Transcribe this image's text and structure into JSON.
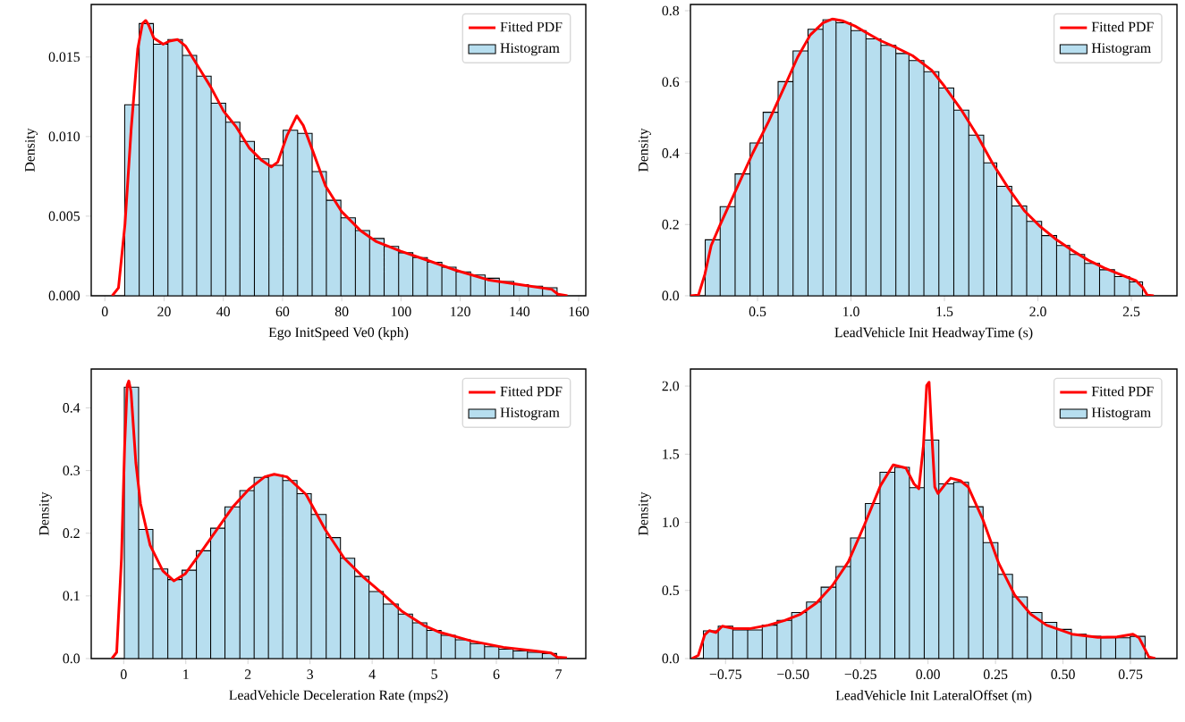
{
  "chart_data": [
    {
      "type": "histogram",
      "xlabel": "Ego InitSpeed Ve0 (kph)",
      "ylabel": "Density",
      "xlim": [
        -4.6,
        162.4
      ],
      "ylim": [
        0,
        0.0183
      ],
      "xticks": [
        0,
        20,
        40,
        60,
        80,
        100,
        120,
        140,
        160
      ],
      "yticks": [
        {
          "value": 0,
          "label": "0.000"
        },
        {
          "value": 0.005,
          "label": "0.005"
        },
        {
          "value": 0.01,
          "label": "0.010"
        },
        {
          "value": 0.015,
          "label": "0.015"
        }
      ],
      "legend": "top right",
      "series": [
        {
          "name": "Fitted PDF",
          "type": "line",
          "color": "#ff0000",
          "x": [
            2.5,
            4.6,
            6.8,
            8.9,
            11.1,
            12.7,
            13.8,
            14.8,
            16.5,
            19.7,
            21.8,
            24.5,
            27.2,
            31.5,
            35.8,
            40.1,
            44.4,
            48.7,
            53.0,
            56.2,
            58.4,
            61.6,
            64.8,
            67.0,
            70.2,
            74.5,
            79.9,
            86.3,
            91.7,
            99.9,
            107.8,
            118.6,
            129.4,
            140.1,
            150.9,
            153.0,
            156.2
          ],
          "values": [
            0,
            0.0005,
            0.0045,
            0.0105,
            0.0155,
            0.0171,
            0.0173,
            0.017,
            0.0162,
            0.0158,
            0.016,
            0.0161,
            0.0157,
            0.0144,
            0.0131,
            0.0116,
            0.0106,
            0.0093,
            0.0085,
            0.0081,
            0.0084,
            0.0101,
            0.0113,
            0.0107,
            0.0091,
            0.0069,
            0.0053,
            0.0041,
            0.0034,
            0.0028,
            0.0023,
            0.0016,
            0.001,
            0.0007,
            0.0004,
            0.0001,
            0
          ]
        },
        {
          "name": "Histogram",
          "type": "histogram",
          "color": "#b7deef",
          "bins": [
            6.7,
            11.6,
            16.4,
            21.3,
            26.2,
            31.0,
            35.9,
            40.8,
            45.6,
            50.5,
            55.4,
            60.2,
            65.1,
            70.0,
            74.8,
            79.7,
            84.6,
            89.4,
            94.3,
            99.2,
            104.0,
            108.9,
            113.8,
            118.6,
            123.5,
            128.4,
            133.2,
            138.1,
            143.0,
            147.8,
            152.7
          ],
          "values": [
            0.012,
            0.0171,
            0.0158,
            0.0161,
            0.0151,
            0.0138,
            0.0121,
            0.0109,
            0.0097,
            0.0086,
            0.0082,
            0.0104,
            0.0102,
            0.0078,
            0.006,
            0.0049,
            0.0041,
            0.0036,
            0.0031,
            0.0027,
            0.0024,
            0.0021,
            0.0018,
            0.0015,
            0.0013,
            0.0011,
            0.0009,
            0.0007,
            0.0006,
            0.0005
          ]
        }
      ]
    },
    {
      "type": "histogram",
      "xlabel": "LeadVehicle Init HeadwayTime (s)",
      "ylabel": "Density",
      "xlim": [
        0.141,
        2.744
      ],
      "ylim": [
        0,
        0.8176
      ],
      "xticks": [
        {
          "value": 0.5,
          "label": "0.5"
        },
        {
          "value": 1.0,
          "label": "1.0"
        },
        {
          "value": 1.5,
          "label": "1.5"
        },
        {
          "value": 2.0,
          "label": "2.0"
        },
        {
          "value": 2.5,
          "label": "2.5"
        }
      ],
      "yticks": [
        {
          "value": 0,
          "label": "0.0"
        },
        {
          "value": 0.2,
          "label": "0.2"
        },
        {
          "value": 0.4,
          "label": "0.4"
        },
        {
          "value": 0.6,
          "label": "0.6"
        },
        {
          "value": 0.8,
          "label": "0.8"
        }
      ],
      "legend": "top right",
      "series": [
        {
          "name": "Fitted PDF",
          "type": "line",
          "color": "#ff0000",
          "x": [
            0.141,
            0.184,
            0.218,
            0.252,
            0.303,
            0.389,
            0.474,
            0.56,
            0.645,
            0.714,
            0.782,
            0.85,
            0.902,
            0.953,
            1.021,
            1.09,
            1.158,
            1.244,
            1.329,
            1.432,
            1.5,
            1.585,
            1.671,
            1.756,
            1.842,
            1.927,
            2.013,
            2.098,
            2.184,
            2.269,
            2.355,
            2.44,
            2.526,
            2.56,
            2.585,
            2.62
          ],
          "values": [
            0,
            0.002,
            0.06,
            0.141,
            0.203,
            0.302,
            0.4,
            0.49,
            0.588,
            0.669,
            0.732,
            0.766,
            0.777,
            0.772,
            0.757,
            0.736,
            0.716,
            0.696,
            0.674,
            0.633,
            0.588,
            0.526,
            0.454,
            0.373,
            0.302,
            0.239,
            0.194,
            0.158,
            0.127,
            0.1,
            0.078,
            0.06,
            0.042,
            0.024,
            0.002,
            0
          ]
        },
        {
          "name": "Histogram",
          "type": "histogram",
          "color": "#b7deef",
          "bins": [
            0.22,
            0.3,
            0.38,
            0.46,
            0.53,
            0.61,
            0.69,
            0.77,
            0.85,
            0.92,
            1.0,
            1.08,
            1.16,
            1.24,
            1.31,
            1.39,
            1.47,
            1.55,
            1.63,
            1.71,
            1.78,
            1.86,
            1.94,
            2.02,
            2.1,
            2.17,
            2.25,
            2.33,
            2.41,
            2.49,
            2.56
          ],
          "values": [
            0.157,
            0.25,
            0.342,
            0.429,
            0.515,
            0.601,
            0.687,
            0.748,
            0.775,
            0.766,
            0.744,
            0.721,
            0.703,
            0.68,
            0.66,
            0.629,
            0.583,
            0.521,
            0.451,
            0.373,
            0.307,
            0.252,
            0.209,
            0.169,
            0.141,
            0.116,
            0.091,
            0.073,
            0.054,
            0.039
          ]
        }
      ]
    },
    {
      "type": "histogram",
      "xlabel": "LeadVehicle Deceleration Rate (mps2)",
      "ylabel": "Density",
      "xlim": [
        -0.523,
        7.44
      ],
      "ylim": [
        0,
        0.462
      ],
      "xticks": [
        0,
        1,
        2,
        3,
        4,
        5,
        6,
        7
      ],
      "yticks": [
        {
          "value": 0,
          "label": "0.0"
        },
        {
          "value": 0.1,
          "label": "0.1"
        },
        {
          "value": 0.2,
          "label": "0.2"
        },
        {
          "value": 0.3,
          "label": "0.3"
        },
        {
          "value": 0.4,
          "label": "0.4"
        }
      ],
      "legend": "top right",
      "series": [
        {
          "name": "Fitted PDF",
          "type": "line",
          "color": "#ff0000",
          "x": [
            -0.19,
            -0.113,
            -0.036,
            0.015,
            0.056,
            0.082,
            0.118,
            0.195,
            0.271,
            0.425,
            0.63,
            0.809,
            0.989,
            1.245,
            1.501,
            1.757,
            2.013,
            2.27,
            2.423,
            2.628,
            2.935,
            3.243,
            3.55,
            3.858,
            4.165,
            4.472,
            4.831,
            5.087,
            5.6,
            6.112,
            6.624,
            6.881,
            6.983,
            7.136
          ],
          "values": [
            0,
            0.01,
            0.16,
            0.339,
            0.436,
            0.443,
            0.426,
            0.313,
            0.247,
            0.181,
            0.14,
            0.124,
            0.135,
            0.17,
            0.206,
            0.242,
            0.27,
            0.29,
            0.294,
            0.29,
            0.262,
            0.206,
            0.16,
            0.13,
            0.104,
            0.076,
            0.053,
            0.042,
            0.028,
            0.018,
            0.012,
            0.009,
            0.002,
            0.001
          ]
        },
        {
          "name": "Histogram",
          "type": "histogram",
          "color": "#b7deef",
          "bins": [
            0.01,
            0.24,
            0.47,
            0.71,
            0.94,
            1.17,
            1.4,
            1.63,
            1.87,
            2.1,
            2.33,
            2.56,
            2.79,
            3.02,
            3.26,
            3.49,
            3.72,
            3.95,
            4.18,
            4.42,
            4.65,
            4.88,
            5.11,
            5.34,
            5.58,
            5.81,
            6.04,
            6.27,
            6.5,
            6.74,
            6.97
          ],
          "values": [
            0.433,
            0.206,
            0.143,
            0.126,
            0.141,
            0.172,
            0.208,
            0.242,
            0.268,
            0.289,
            0.293,
            0.284,
            0.263,
            0.23,
            0.193,
            0.16,
            0.131,
            0.107,
            0.087,
            0.071,
            0.057,
            0.045,
            0.037,
            0.03,
            0.024,
            0.019,
            0.015,
            0.012,
            0.01,
            0.008
          ]
        }
      ]
    },
    {
      "type": "histogram",
      "xlabel": "LeadVehicle Init LateralOffset (m)",
      "ylabel": "Density",
      "xlim": [
        -0.88,
        0.922
      ],
      "ylim": [
        0,
        2.125
      ],
      "xticks": [
        {
          "value": -0.75,
          "label": "−0.75"
        },
        {
          "value": -0.5,
          "label": "−0.50"
        },
        {
          "value": -0.25,
          "label": "−0.25"
        },
        {
          "value": 0,
          "label": "0.00"
        },
        {
          "value": 0.25,
          "label": "0.25"
        },
        {
          "value": 0.5,
          "label": "0.50"
        },
        {
          "value": 0.75,
          "label": "0.75"
        }
      ],
      "yticks": [
        {
          "value": 0,
          "label": "0.0"
        },
        {
          "value": 0.5,
          "label": "0.5"
        },
        {
          "value": 1.0,
          "label": "1.0"
        },
        {
          "value": 1.5,
          "label": "1.5"
        },
        {
          "value": 2.0,
          "label": "2.0"
        }
      ],
      "legend": "top right",
      "series": [
        {
          "name": "Fitted PDF",
          "type": "line",
          "color": "#ff0000",
          "x": [
            -0.875,
            -0.851,
            -0.827,
            -0.81,
            -0.786,
            -0.762,
            -0.721,
            -0.662,
            -0.591,
            -0.531,
            -0.472,
            -0.413,
            -0.354,
            -0.295,
            -0.236,
            -0.176,
            -0.129,
            -0.082,
            -0.052,
            -0.034,
            -0.017,
            -0.005,
            0.004,
            0.013,
            0.025,
            0.037,
            0.06,
            0.084,
            0.12,
            0.149,
            0.202,
            0.262,
            0.321,
            0.38,
            0.439,
            0.534,
            0.629,
            0.7,
            0.759,
            0.782,
            0.818,
            0.842
          ],
          "values": [
            0,
            0.023,
            0.175,
            0.205,
            0.191,
            0.238,
            0.221,
            0.219,
            0.245,
            0.28,
            0.326,
            0.408,
            0.536,
            0.711,
            0.979,
            1.27,
            1.422,
            1.399,
            1.282,
            1.247,
            1.562,
            2.005,
            2.028,
            1.678,
            1.259,
            1.212,
            1.27,
            1.324,
            1.305,
            1.259,
            1.026,
            0.699,
            0.466,
            0.326,
            0.245,
            0.179,
            0.156,
            0.159,
            0.179,
            0.152,
            0.012,
            0
          ]
        },
        {
          "name": "Histogram",
          "type": "histogram",
          "color": "#b7deef",
          "bins": [
            -0.832,
            -0.777,
            -0.723,
            -0.668,
            -0.614,
            -0.559,
            -0.505,
            -0.45,
            -0.396,
            -0.341,
            -0.287,
            -0.232,
            -0.178,
            -0.123,
            -0.069,
            -0.014,
            0.04,
            0.095,
            0.15,
            0.204,
            0.259,
            0.313,
            0.368,
            0.422,
            0.477,
            0.531,
            0.586,
            0.64,
            0.695,
            0.749,
            0.804
          ],
          "values": [
            0.203,
            0.238,
            0.21,
            0.21,
            0.245,
            0.28,
            0.338,
            0.415,
            0.524,
            0.676,
            0.886,
            1.138,
            1.368,
            1.403,
            1.254,
            1.604,
            1.282,
            1.294,
            1.114,
            0.851,
            0.618,
            0.452,
            0.338,
            0.266,
            0.214,
            0.179,
            0.163,
            0.152,
            0.152,
            0.163
          ]
        }
      ]
    }
  ]
}
